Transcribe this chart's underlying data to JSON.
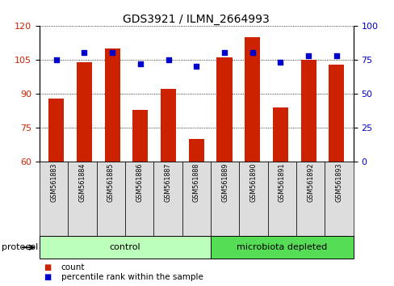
{
  "title": "GDS3921 / ILMN_2664993",
  "samples": [
    "GSM561883",
    "GSM561884",
    "GSM561885",
    "GSM561886",
    "GSM561887",
    "GSM561888",
    "GSM561889",
    "GSM561890",
    "GSM561891",
    "GSM561892",
    "GSM561893"
  ],
  "counts": [
    88,
    104,
    110,
    83,
    92,
    70,
    106,
    115,
    84,
    105,
    103
  ],
  "percentile_ranks": [
    75,
    80,
    80,
    72,
    75,
    70,
    80,
    80,
    73,
    78,
    78
  ],
  "ylim_left": [
    60,
    120
  ],
  "ylim_right": [
    0,
    100
  ],
  "yticks_left": [
    60,
    75,
    90,
    105,
    120
  ],
  "yticks_right": [
    0,
    25,
    50,
    75,
    100
  ],
  "bar_color": "#cc2200",
  "dot_color": "#0000cc",
  "n_control": 6,
  "n_micro": 5,
  "control_label": "control",
  "microbiota_label": "microbiota depleted",
  "control_color": "#bbffbb",
  "microbiota_color": "#55dd55",
  "protocol_label": "protocol",
  "legend_count": "count",
  "legend_percentile": "percentile rank within the sample",
  "sample_box_color": "#dddddd",
  "title_fontsize": 10
}
